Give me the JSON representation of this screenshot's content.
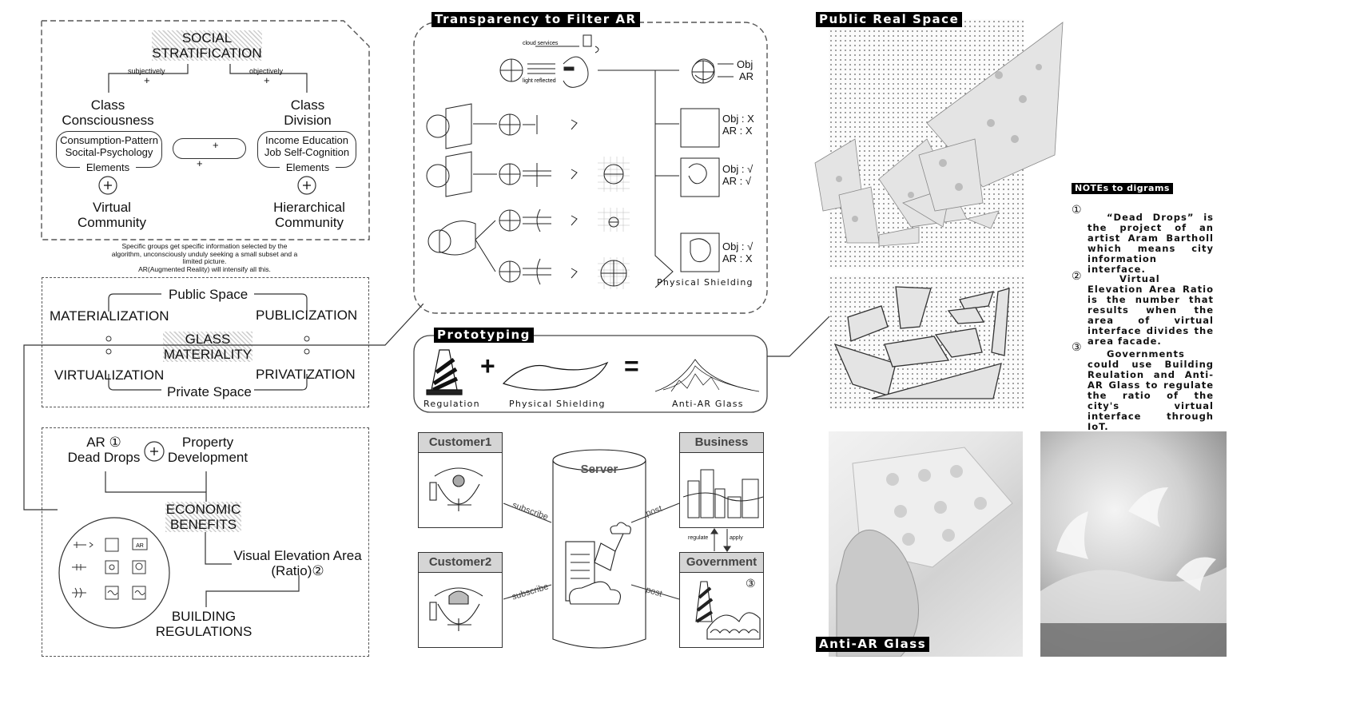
{
  "social": {
    "title": "SOCIAL\nSTRATIFICATION",
    "subjectively": "subjectively",
    "objectively": "objectively",
    "plus": "+",
    "class_consciousness": "Class\nConsciousness",
    "class_division": "Class\nDivision",
    "left_pill": "Consumption-Pattern\nSocital-Psychology",
    "right_pill": "Income  Education\nJob  Self-Cognition",
    "elements": "Elements",
    "virtual_community": "Virtual\nCommunity",
    "hierarchical_community": "Hierarchical\nCommunity",
    "note": "Specific groups get specific information selected by the algorithm, unconsciously  unduly seeking a small subset and a limited picture.\nAR(Augmented Reality) will intensify all this."
  },
  "glass": {
    "public_space": "Public Space",
    "private_space": "Private Space",
    "materialization": "MATERIALIZATION",
    "publicization": "PUBLICIZATION",
    "virtualization": "VIRTUALIZATION",
    "privatization": "PRIVATIZATION",
    "title": "GLASS\nMATERIALITY"
  },
  "economic": {
    "ar_dead_drops": "AR ①\nDead Drops",
    "property_development": "Property\nDevelopment",
    "title": "ECONOMIC\nBENEFITS",
    "visual_elevation": "Visual Elevation Area\n(Ratio)②",
    "building_regulations": "BUILDING\nREGULATIONS",
    "ar_icon_label": "AR"
  },
  "transparency": {
    "title": "Transparency to Filter AR",
    "cloud_services": "cloud services",
    "light_reflected": "light reflected",
    "obj": "Obj",
    "ar": "AR",
    "row1": "Obj : X\nAR : X",
    "row2": "Obj : √\nAR : √",
    "row3": "Obj : √\nAR : X",
    "physical_shielding": "Physical Shielding"
  },
  "prototyping": {
    "title": "Prototyping",
    "regulation": "Regulation",
    "physical_shielding": "Physical Shielding",
    "anti_ar_glass": "Anti-AR Glass",
    "plus": "+",
    "equals": "="
  },
  "network": {
    "customer1": "Customer1",
    "customer2": "Customer2",
    "server": "Server",
    "business": "Business",
    "government": "Government",
    "subscribe": "subscribe",
    "post": "post",
    "regulate": "regulate",
    "apply": "apply",
    "num3": "③"
  },
  "public_real_space": {
    "title": "Public Real Space"
  },
  "anti_ar_glass_photo": {
    "title": "Anti-AR Glass"
  },
  "notes": {
    "title": "NOTEs to digrams",
    "n1_mark": "①",
    "n1": "“Dead Drops” is the project of an artist Aram Bartholl which means city information interface.",
    "n2_mark": "②",
    "n2": "Virtual Elevation Area Ratio is the number that results when the area of virtual interface divides the area facade.",
    "n3_mark": "③",
    "n3": "Governments could use Building Reulation and Anti-AR Glass to regulate the ratio of the city's virtual interface through IoT."
  }
}
